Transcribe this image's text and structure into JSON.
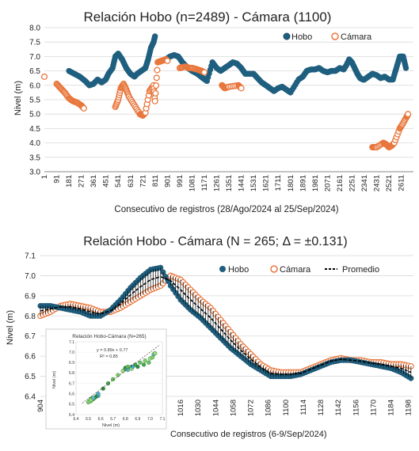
{
  "chart_data": [
    {
      "type": "scatter",
      "title": "Relación Hobo (n=2489) - Cámara (1100)",
      "xlabel": "Consecutivo de registros (28/Ago/2024 al 25/Sep/2024)",
      "ylabel": "Nivel (m)",
      "ylim": [
        3.0,
        8.0
      ],
      "xlim": [
        1,
        2700
      ],
      "yticks": [
        "3.0",
        "3.5",
        "4.0",
        "4.5",
        "5.0",
        "5.5",
        "6.0",
        "6.5",
        "7.0",
        "7.5",
        "8.0"
      ],
      "xticks": [
        "1",
        "91",
        "181",
        "271",
        "361",
        "451",
        "541",
        "631",
        "721",
        "811",
        "901",
        "991",
        "1081",
        "1171",
        "1261",
        "1351",
        "1441",
        "1531",
        "1621",
        "1711",
        "1801",
        "1891",
        "1981",
        "2071",
        "2161",
        "2251",
        "2341",
        "2431",
        "2521",
        "2611"
      ],
      "legend_position": "top-right",
      "series": [
        {
          "name": "Hobo",
          "color": "#1f5f7f",
          "points": [
            [
              181,
              6.5
            ],
            [
              220,
              6.4
            ],
            [
              260,
              6.3
            ],
            [
              300,
              6.15
            ],
            [
              330,
              6.0
            ],
            [
              360,
              6.05
            ],
            [
              390,
              6.2
            ],
            [
              420,
              6.1
            ],
            [
              450,
              6.2
            ],
            [
              470,
              6.4
            ],
            [
              500,
              6.6
            ],
            [
              520,
              7.0
            ],
            [
              541,
              7.1
            ],
            [
              570,
              6.9
            ],
            [
              600,
              6.6
            ],
            [
              630,
              6.4
            ],
            [
              660,
              6.3
            ],
            [
              680,
              6.4
            ],
            [
              710,
              6.5
            ],
            [
              740,
              6.6
            ],
            [
              760,
              6.9
            ],
            [
              780,
              7.3
            ],
            [
              800,
              7.5
            ],
            [
              810,
              7.7
            ],
            [
              890,
              6.9
            ],
            [
              920,
              7.0
            ],
            [
              950,
              7.05
            ],
            [
              980,
              7.0
            ],
            [
              1010,
              6.8
            ],
            [
              1050,
              6.6
            ],
            [
              1081,
              6.5
            ],
            [
              1120,
              6.4
            ],
            [
              1160,
              6.25
            ],
            [
              1190,
              6.15
            ],
            [
              1230,
              6.8
            ],
            [
              1261,
              6.6
            ],
            [
              1290,
              6.5
            ],
            [
              1320,
              6.6
            ],
            [
              1351,
              6.7
            ],
            [
              1380,
              6.8
            ],
            [
              1410,
              6.75
            ],
            [
              1441,
              6.6
            ],
            [
              1470,
              6.4
            ],
            [
              1531,
              6.4
            ],
            [
              1560,
              6.25
            ],
            [
              1590,
              6.1
            ],
            [
              1621,
              6.0
            ],
            [
              1650,
              5.9
            ],
            [
              1680,
              5.8
            ],
            [
              1711,
              5.9
            ],
            [
              1740,
              5.95
            ],
            [
              1770,
              5.85
            ],
            [
              1801,
              5.75
            ],
            [
              1860,
              6.2
            ],
            [
              1891,
              6.3
            ],
            [
              1920,
              6.5
            ],
            [
              1950,
              6.55
            ],
            [
              1981,
              6.55
            ],
            [
              2010,
              6.6
            ],
            [
              2040,
              6.5
            ],
            [
              2071,
              6.45
            ],
            [
              2100,
              6.5
            ],
            [
              2130,
              6.5
            ],
            [
              2161,
              6.6
            ],
            [
              2190,
              6.55
            ],
            [
              2210,
              6.7
            ],
            [
              2230,
              6.9
            ],
            [
              2250,
              6.8
            ],
            [
              2270,
              6.6
            ],
            [
              2290,
              6.4
            ],
            [
              2310,
              6.25
            ],
            [
              2330,
              6.2
            ],
            [
              2341,
              6.2
            ],
            [
              2370,
              6.3
            ],
            [
              2400,
              6.4
            ],
            [
              2431,
              6.35
            ],
            [
              2460,
              6.25
            ],
            [
              2490,
              6.3
            ],
            [
              2521,
              6.2
            ],
            [
              2550,
              6.2
            ],
            [
              2575,
              6.6
            ],
            [
              2600,
              7.0
            ],
            [
              2625,
              7.0
            ],
            [
              2645,
              6.6
            ]
          ]
        },
        {
          "name": "Cámara",
          "color": "#e8773d",
          "points": [
            [
              1,
              6.3
            ],
            [
              91,
              6.05
            ],
            [
              120,
              5.9
            ],
            [
              150,
              5.75
            ],
            [
              181,
              5.55
            ],
            [
              210,
              5.45
            ],
            [
              240,
              5.4
            ],
            [
              271,
              5.3
            ],
            [
              290,
              5.2
            ],
            [
              520,
              5.25
            ],
            [
              541,
              5.5
            ],
            [
              560,
              5.9
            ],
            [
              580,
              6.05
            ],
            [
              600,
              5.85
            ],
            [
              620,
              5.6
            ],
            [
              660,
              5.3
            ],
            [
              700,
              5.0
            ],
            [
              721,
              4.95
            ],
            [
              740,
              5.05
            ],
            [
              770,
              5.8
            ],
            [
              800,
              6.0
            ],
            [
              810,
              5.45
            ],
            [
              830,
              6.8
            ],
            [
              860,
              6.85
            ],
            [
              890,
              6.9
            ],
            [
              901,
              6.85
            ],
            [
              991,
              6.6
            ],
            [
              1030,
              6.65
            ],
            [
              1060,
              6.6
            ],
            [
              1081,
              6.6
            ],
            [
              1120,
              6.55
            ],
            [
              1150,
              6.5
            ],
            [
              1171,
              6.45
            ],
            [
              1300,
              6.0
            ],
            [
              1320,
              5.9
            ],
            [
              1351,
              5.95
            ],
            [
              1420,
              6.0
            ],
            [
              1441,
              5.9
            ],
            [
              2400,
              3.85
            ],
            [
              2431,
              3.85
            ],
            [
              2480,
              4.0
            ],
            [
              2500,
              3.95
            ],
            [
              2521,
              3.85
            ],
            [
              2540,
              3.9
            ],
            [
              2560,
              4.0
            ],
            [
              2600,
              4.5
            ],
            [
              2620,
              4.65
            ],
            [
              2650,
              4.9
            ],
            [
              2660,
              5.0
            ]
          ]
        }
      ]
    },
    {
      "type": "line",
      "title": "Relación Hobo - Cámara (N = 265; Δ = ±0.131)",
      "xlabel": "Consecutivo de registros (6-9/Sep/2024)",
      "ylabel": "Nivel (m)",
      "ylim": [
        6.4,
        7.1
      ],
      "xlim": [
        904,
        1202
      ],
      "yticks": [
        "6.4",
        "6.5",
        "6.6",
        "6.7",
        "6.8",
        "6.9",
        "7.0",
        "7.1"
      ],
      "xticks": [
        "904",
        "1016",
        "1030",
        "1044",
        "1058",
        "1072",
        "1086",
        "1100",
        "1114",
        "1128",
        "1142",
        "1156",
        "1170",
        "1184",
        "1198"
      ],
      "legend_position": "top-right",
      "series": [
        {
          "name": "Hobo",
          "color": "#1f5f7f",
          "x": [
            904,
            912,
            920,
            928,
            936,
            944,
            952,
            960,
            968,
            976,
            984,
            992,
            1000,
            1008,
            1016,
            1024,
            1032,
            1040,
            1048,
            1056,
            1064,
            1072,
            1080,
            1088,
            1096,
            1104,
            1112,
            1120,
            1128,
            1136,
            1144,
            1152,
            1160,
            1168,
            1176,
            1184,
            1192,
            1200
          ],
          "values": [
            6.85,
            6.85,
            6.84,
            6.83,
            6.82,
            6.8,
            6.8,
            6.83,
            6.88,
            6.94,
            6.99,
            7.03,
            7.04,
            6.95,
            6.88,
            6.83,
            6.79,
            6.74,
            6.69,
            6.64,
            6.6,
            6.56,
            6.53,
            6.5,
            6.5,
            6.5,
            6.51,
            6.53,
            6.55,
            6.57,
            6.58,
            6.58,
            6.57,
            6.56,
            6.55,
            6.54,
            6.52,
            6.49
          ]
        },
        {
          "name": "Cámara",
          "color": "#e8773d",
          "x": [
            904,
            912,
            920,
            928,
            936,
            944,
            952,
            960,
            968,
            976,
            984,
            992,
            1000,
            1008,
            1016,
            1024,
            1032,
            1040,
            1048,
            1056,
            1064,
            1072,
            1080,
            1088,
            1096,
            1104,
            1112,
            1120,
            1128,
            1136,
            1144,
            1152,
            1160,
            1168,
            1176,
            1184,
            1192,
            1200
          ],
          "values": [
            6.8,
            6.82,
            6.85,
            6.86,
            6.85,
            6.84,
            6.82,
            6.82,
            6.84,
            6.87,
            6.9,
            6.93,
            6.95,
            7.0,
            6.98,
            6.93,
            6.88,
            6.84,
            6.78,
            6.72,
            6.66,
            6.61,
            6.56,
            6.53,
            6.52,
            6.52,
            6.52,
            6.54,
            6.56,
            6.58,
            6.59,
            6.58,
            6.58,
            6.57,
            6.57,
            6.56,
            6.56,
            6.55
          ]
        },
        {
          "name": "Promedio",
          "color": "#000000",
          "x": [
            904,
            912,
            920,
            928,
            936,
            944,
            952,
            960,
            968,
            976,
            984,
            992,
            1000,
            1008,
            1016,
            1024,
            1032,
            1040,
            1048,
            1056,
            1064,
            1072,
            1080,
            1088,
            1096,
            1104,
            1112,
            1120,
            1128,
            1136,
            1144,
            1152,
            1160,
            1168,
            1176,
            1184,
            1192,
            1200
          ],
          "values": [
            6.825,
            6.835,
            6.845,
            6.845,
            6.835,
            6.82,
            6.81,
            6.825,
            6.86,
            6.905,
            6.945,
            6.98,
            6.995,
            6.975,
            6.93,
            6.88,
            6.835,
            6.79,
            6.735,
            6.68,
            6.63,
            6.585,
            6.545,
            6.515,
            6.51,
            6.51,
            6.515,
            6.535,
            6.555,
            6.575,
            6.585,
            6.58,
            6.575,
            6.565,
            6.56,
            6.55,
            6.54,
            6.52
          ]
        }
      ],
      "inset": {
        "title": "Relación Hobo-Cámara (N=265)",
        "xlabel": "Nivel (m)",
        "ylabel": "Nivel (m)",
        "equation": "y = 0.89x + 0.77",
        "r2": "R² = 0.85",
        "xticks": [
          "6.4",
          "6.5",
          "6.6",
          "6.7",
          "6.8",
          "6.9",
          "7.0",
          "7.1"
        ],
        "yticks": [
          "6.4",
          "6.5",
          "6.6",
          "6.7",
          "6.8",
          "6.9",
          "7.0",
          "7.1"
        ],
        "xlim": [
          6.4,
          7.1
        ],
        "ylim": [
          6.4,
          7.1
        ],
        "points": [
          [
            6.5,
            6.52
          ],
          [
            6.51,
            6.53
          ],
          [
            6.52,
            6.55
          ],
          [
            6.53,
            6.56
          ],
          [
            6.55,
            6.56
          ],
          [
            6.57,
            6.58
          ],
          [
            6.58,
            6.58
          ],
          [
            6.56,
            6.57
          ],
          [
            6.54,
            6.55
          ],
          [
            6.52,
            6.53
          ],
          [
            6.5,
            6.52
          ],
          [
            6.52,
            6.54
          ],
          [
            6.54,
            6.56
          ],
          [
            6.58,
            6.6
          ],
          [
            6.62,
            6.65
          ],
          [
            6.66,
            6.7
          ],
          [
            6.7,
            6.74
          ],
          [
            6.74,
            6.78
          ],
          [
            6.78,
            6.82
          ],
          [
            6.8,
            6.84
          ],
          [
            6.83,
            6.85
          ],
          [
            6.85,
            6.86
          ],
          [
            6.88,
            6.88
          ],
          [
            6.92,
            6.9
          ],
          [
            6.96,
            6.92
          ],
          [
            7.0,
            6.94
          ],
          [
            7.03,
            6.98
          ],
          [
            7.04,
            6.99
          ],
          [
            6.8,
            6.85
          ],
          [
            6.81,
            6.84
          ],
          [
            6.82,
            6.86
          ],
          [
            6.84,
            6.85
          ],
          [
            6.85,
            6.84
          ],
          [
            6.82,
            6.83
          ],
          [
            6.86,
            6.86
          ],
          [
            6.9,
            6.86
          ],
          [
            6.95,
            6.88
          ],
          [
            6.99,
            6.9
          ],
          [
            7.02,
            6.95
          ],
          [
            7.04,
            6.99
          ]
        ]
      }
    }
  ]
}
